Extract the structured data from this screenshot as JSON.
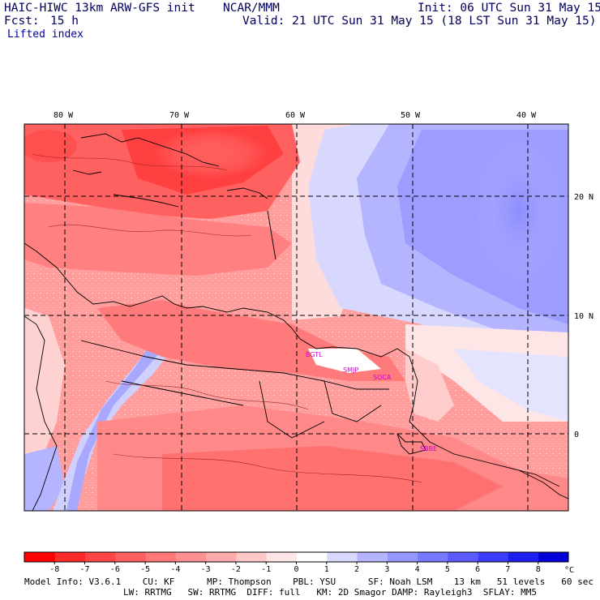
{
  "header": {
    "model_title": "HAIC-HIWC 13km ARW-GFS init",
    "org": "NCAR/MMM",
    "init": "Init: 06 UTC Sun 31 May 15",
    "fcst_label": "Fcst:",
    "fcst_value": "15 h",
    "valid": "Valid: 21 UTC Sun 31 May 15 (18 LST Sun 31 May 15)",
    "field": "Lifted index"
  },
  "map": {
    "lon_labels": [
      "80 W",
      "70 W",
      "60 W",
      "50 W",
      "40 W"
    ],
    "lat_labels": [
      "20 N",
      "10 N",
      "0"
    ],
    "sites": [
      "BGTL",
      "SMJP",
      "SOCA",
      "SBBE"
    ]
  },
  "colorbar": {
    "ticks": [
      "-8",
      "-7",
      "-6",
      "-5",
      "-4",
      "-3",
      "-2",
      "-1",
      "0",
      "1",
      "2",
      "3",
      "4",
      "5",
      "6",
      "7",
      "8"
    ],
    "unit": "°C",
    "colors": [
      "#ff0000",
      "#ff2a2a",
      "#ff4545",
      "#ff5f5f",
      "#ff7878",
      "#ff9090",
      "#ffaaaa",
      "#ffc8c8",
      "#ffe6e6",
      "#ffffff",
      "#d8d8ff",
      "#b4b4ff",
      "#9696ff",
      "#7878ff",
      "#5a5aff",
      "#3c3cff",
      "#1e1ef0",
      "#0000d8"
    ]
  },
  "footer": {
    "line1": "Model Info: V3.6.1    CU: KF      MP: Thompson    PBL: YSU      SF: Noah LSM    13 km   51 levels   60 sec",
    "line2": "LW: RRTMG   SW: RRTMG  DIFF: full   KM: 2D Smagor DAMP: Rayleigh3  SFLAY: MM5"
  }
}
